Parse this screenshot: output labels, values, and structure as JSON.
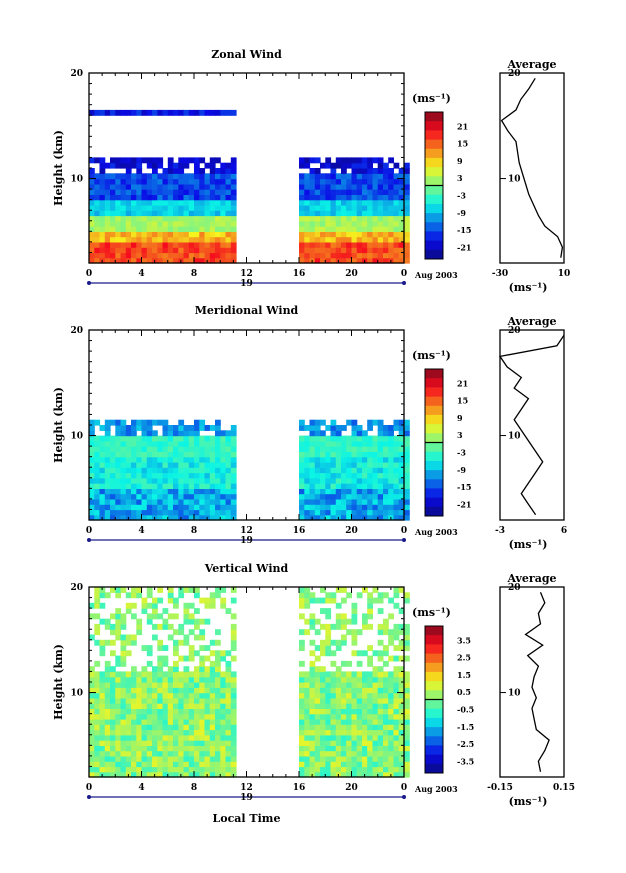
{
  "figure": {
    "xlabel_bottom": "Local Time"
  },
  "chart_data": [
    {
      "type": "heatmap",
      "title": "Zonal Wind",
      "ylabel": "Height (km)",
      "ylim": [
        2,
        20
      ],
      "yticks": [
        "10",
        "20"
      ],
      "xlim": [
        0,
        24
      ],
      "xticks": [
        "0",
        "4",
        "8",
        "12",
        "16",
        "20",
        "0"
      ],
      "date_day": "19",
      "date_label": "Aug 2003",
      "data_gap_hours": [
        11,
        16
      ],
      "colorbar": {
        "unit": "(ms⁻¹)",
        "min": -24,
        "max": 24,
        "ticks": [
          "21",
          "15",
          "9",
          "3",
          "-3",
          "-9",
          "-15",
          "-21"
        ],
        "zero_line": 0
      },
      "profile": {
        "title": "Average",
        "xticks": [
          "-30",
          "10"
        ],
        "xlim": [
          -30,
          10
        ],
        "xlabel": "(ms⁻¹)",
        "yticks": [
          "10",
          "20"
        ],
        "heights": [
          2.5,
          3.5,
          4.5,
          5.5,
          6.5,
          7.5,
          8.5,
          9.5,
          10.5,
          11.5,
          12.5,
          13.5,
          14.5,
          15.5,
          16.5,
          17.5,
          18.5,
          19.5
        ],
        "values": [
          8,
          9,
          6,
          -2,
          -6,
          -9,
          -12,
          -14,
          -16,
          -18,
          -19,
          -20,
          -25,
          -29,
          -20,
          -17,
          -12,
          -8
        ]
      }
    },
    {
      "type": "heatmap",
      "title": "Meridional Wind",
      "ylabel": "Height (km)",
      "ylim": [
        2,
        20
      ],
      "yticks": [
        "10",
        "20"
      ],
      "xlim": [
        0,
        24
      ],
      "xticks": [
        "0",
        "4",
        "8",
        "12",
        "16",
        "20",
        "0"
      ],
      "date_day": "19",
      "date_label": "Aug 2003",
      "data_gap_hours": [
        11,
        16
      ],
      "colorbar": {
        "unit": "(ms⁻¹)",
        "min": -24,
        "max": 24,
        "ticks": [
          "21",
          "15",
          "9",
          "3",
          "-3",
          "-9",
          "-15",
          "-21"
        ],
        "zero_line": 0
      },
      "profile": {
        "title": "Average",
        "xticks": [
          "-3",
          "6"
        ],
        "xlim": [
          -3,
          6
        ],
        "xlabel": "(ms⁻¹)",
        "yticks": [
          "10",
          "20"
        ],
        "heights": [
          2.5,
          3.5,
          4.5,
          5.5,
          6.5,
          7.5,
          8.5,
          9.5,
          10.5,
          11.5,
          12.5,
          13.5,
          14.5,
          15.5,
          16.5,
          17.5,
          18.5,
          19.5
        ],
        "values": [
          2,
          1,
          0,
          1,
          2,
          3,
          2,
          1,
          0,
          -1,
          0,
          1,
          -1,
          0,
          -2,
          -3,
          5,
          6
        ]
      }
    },
    {
      "type": "heatmap",
      "title": "Vertical Wind",
      "ylabel": "Height (km)",
      "ylim": [
        2,
        20
      ],
      "yticks": [
        "10",
        "20"
      ],
      "xlim": [
        0,
        24
      ],
      "xticks": [
        "0",
        "4",
        "8",
        "12",
        "16",
        "20",
        "0"
      ],
      "date_day": "19",
      "date_label": "Aug 2003",
      "data_gap_hours": [
        11,
        16
      ],
      "colorbar": {
        "unit": "(ms⁻¹)",
        "min": -4,
        "max": 4,
        "ticks": [
          "3.5",
          "2.5",
          "1.5",
          "0.5",
          "-0.5",
          "-1.5",
          "-2.5",
          "-3.5"
        ],
        "zero_line": 0
      },
      "profile": {
        "title": "Average",
        "xticks": [
          "-0.15",
          "0.15"
        ],
        "xlim": [
          -0.15,
          0.15
        ],
        "xlabel": "(ms⁻¹)",
        "yticks": [
          "10",
          "20"
        ],
        "heights": [
          2.5,
          3.5,
          4.5,
          5.5,
          6.5,
          7.5,
          8.5,
          9.5,
          10.5,
          11.5,
          12.5,
          13.5,
          14.5,
          15.5,
          16.5,
          17.5,
          18.5,
          19.5
        ],
        "values": [
          0.04,
          0.03,
          0.06,
          0.08,
          0.02,
          0.01,
          0.0,
          0.02,
          0.0,
          0.01,
          0.03,
          -0.02,
          0.05,
          -0.03,
          0.04,
          0.03,
          0.06,
          0.04
        ]
      }
    }
  ]
}
